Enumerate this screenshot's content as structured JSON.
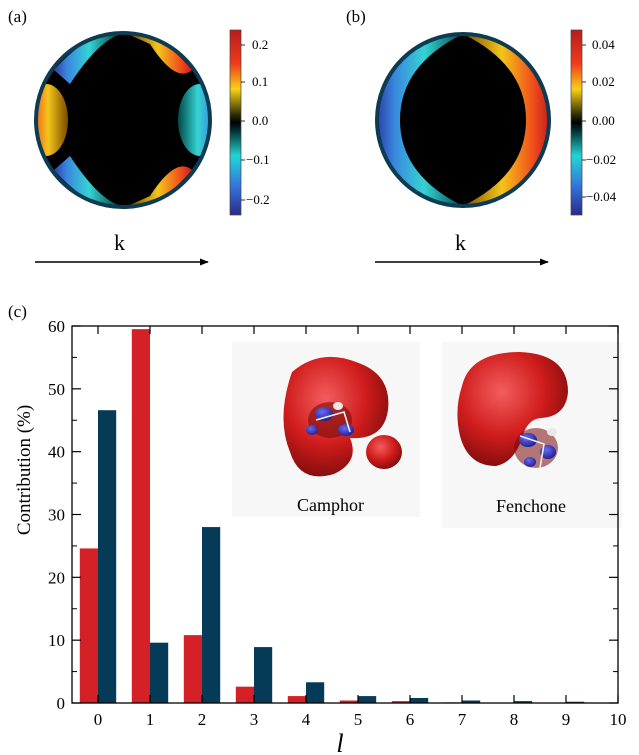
{
  "colors": {
    "camphor": "#d42127",
    "fenchone": "#063b57",
    "disk_rim": "#0d3c52",
    "isosurface_red": "#d01c1c",
    "isosurface_blue": "#2a2cd0",
    "inset_bg": "#f7f7f7"
  },
  "panels": {
    "a": {
      "label": "(a)",
      "arrow_label": "k",
      "colorbar": {
        "ticks": [
          "0.2",
          "0.1",
          "0.0",
          "−0.1",
          "−0.2"
        ],
        "range": [
          -0.23,
          0.23
        ]
      }
    },
    "b": {
      "label": "(b)",
      "arrow_label": "k",
      "colorbar": {
        "ticks": [
          "0.04",
          "0.02",
          "0.00",
          "−0.02",
          "−0.04"
        ],
        "range": [
          -0.05,
          0.05
        ]
      }
    },
    "c": {
      "label": "(c)",
      "insets": [
        {
          "name": "Camphor"
        },
        {
          "name": "Fenchone"
        }
      ]
    }
  },
  "chart_data": {
    "type": "bar",
    "xlabel": "l",
    "ylabel": "Contribution (%)",
    "ylim": [
      0,
      60
    ],
    "yticks": [
      0,
      10,
      20,
      30,
      40,
      50,
      60
    ],
    "xlim": [
      -0.5,
      10
    ],
    "xticks": [
      0,
      1,
      2,
      3,
      4,
      5,
      6,
      7,
      8,
      9,
      10
    ],
    "categories": [
      0,
      1,
      2,
      3,
      4,
      5,
      6,
      7,
      8,
      9
    ],
    "series": [
      {
        "name": "Camphor",
        "color": "#d42127",
        "values": [
          24.6,
          59.5,
          10.8,
          2.6,
          1.1,
          0.4,
          0.3,
          0.1,
          0.05,
          0.05
        ]
      },
      {
        "name": "Fenchone",
        "color": "#063b57",
        "values": [
          46.6,
          9.6,
          28.0,
          8.9,
          3.3,
          1.1,
          0.8,
          0.4,
          0.3,
          0.2
        ]
      }
    ]
  }
}
